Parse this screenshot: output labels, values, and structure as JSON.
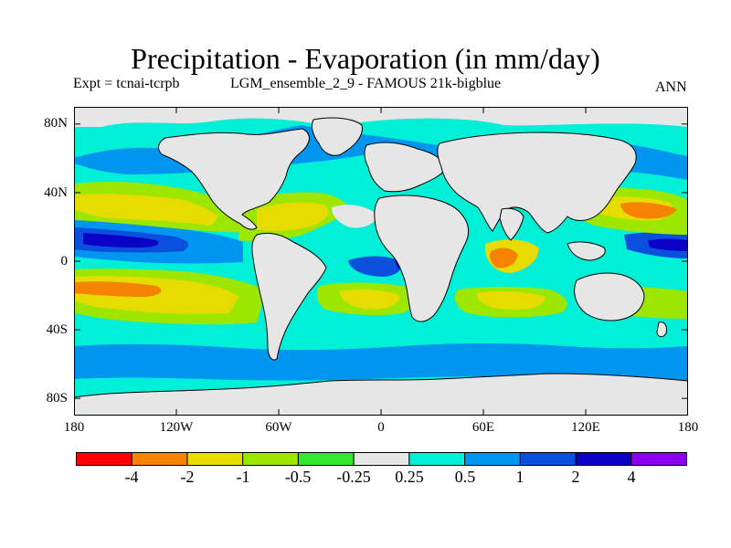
{
  "title": "Precipitation - Evaporation (in mm/day)",
  "subtitle": {
    "experiment": "Expt = tcnai-tcrpb",
    "run": "LGM_ensemble_2_9 - FAMOUS 21k-bigblue",
    "season": "ANN"
  },
  "colors": {
    "land_fill": "#e6e6e6",
    "bins": [
      "#ff0000",
      "#f58200",
      "#e6dc00",
      "#9ce600",
      "#32e632",
      "#e6e6e6",
      "#00f0d7",
      "#0096f0",
      "#0a50dc",
      "#0a00c8",
      "#8c00f0"
    ]
  },
  "map": {
    "projection": "cylindrical-equidistant",
    "lon_range": [
      -180,
      180
    ],
    "lat_range": [
      -90,
      90
    ],
    "lat_ticks": [
      "80N",
      "40N",
      "0",
      "40S",
      "80S"
    ],
    "lon_ticks": [
      "180",
      "120W",
      "60W",
      "0",
      "60E",
      "120E",
      "180"
    ]
  },
  "colorbar": {
    "labels": [
      "-4",
      "-2",
      "-1",
      "-0.5",
      "-0.25",
      "0.25",
      "0.5",
      "1",
      "2",
      "4"
    ]
  }
}
